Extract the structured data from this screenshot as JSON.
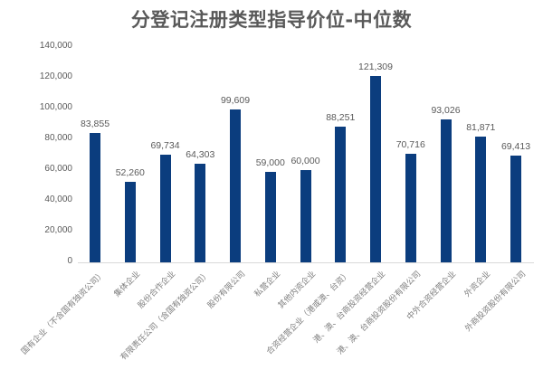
{
  "chart_data": {
    "type": "bar",
    "title": "分登记注册类型指导价位-中位数",
    "xlabel": "",
    "ylabel": "",
    "ylim": [
      0,
      140000
    ],
    "yticks": [
      0,
      20000,
      40000,
      60000,
      80000,
      100000,
      120000,
      140000
    ],
    "ytick_labels": [
      "0",
      "20,000",
      "40,000",
      "60,000",
      "80,000",
      "100,000",
      "120,000",
      "140,000"
    ],
    "grid": false,
    "legend": null,
    "bar_color": "#0b3d7e",
    "categories": [
      "国有企业（不含国有独资公司）",
      "集体企业",
      "股份合作企业",
      "有限责任公司（含国有独资公司）",
      "股份有限公司",
      "私营企业",
      "其他内资企业",
      "合资经营企业（港或澳、台资）",
      "港、澳、台商投资经营企业",
      "港、澳、台商投资股份有限公司",
      "中外合资经营企业",
      "外资企业",
      "外商投资股份有限公司"
    ],
    "values": [
      83855,
      52260,
      69734,
      64303,
      99609,
      59000,
      60000,
      88251,
      121309,
      70716,
      93026,
      81871,
      69413
    ],
    "value_labels": [
      "83,855",
      "52,260",
      "69,734",
      "64,303",
      "99,609",
      "59,000",
      "60,000",
      "88,251",
      "121,309",
      "70,716",
      "93,026",
      "81,871",
      "69,413"
    ]
  }
}
